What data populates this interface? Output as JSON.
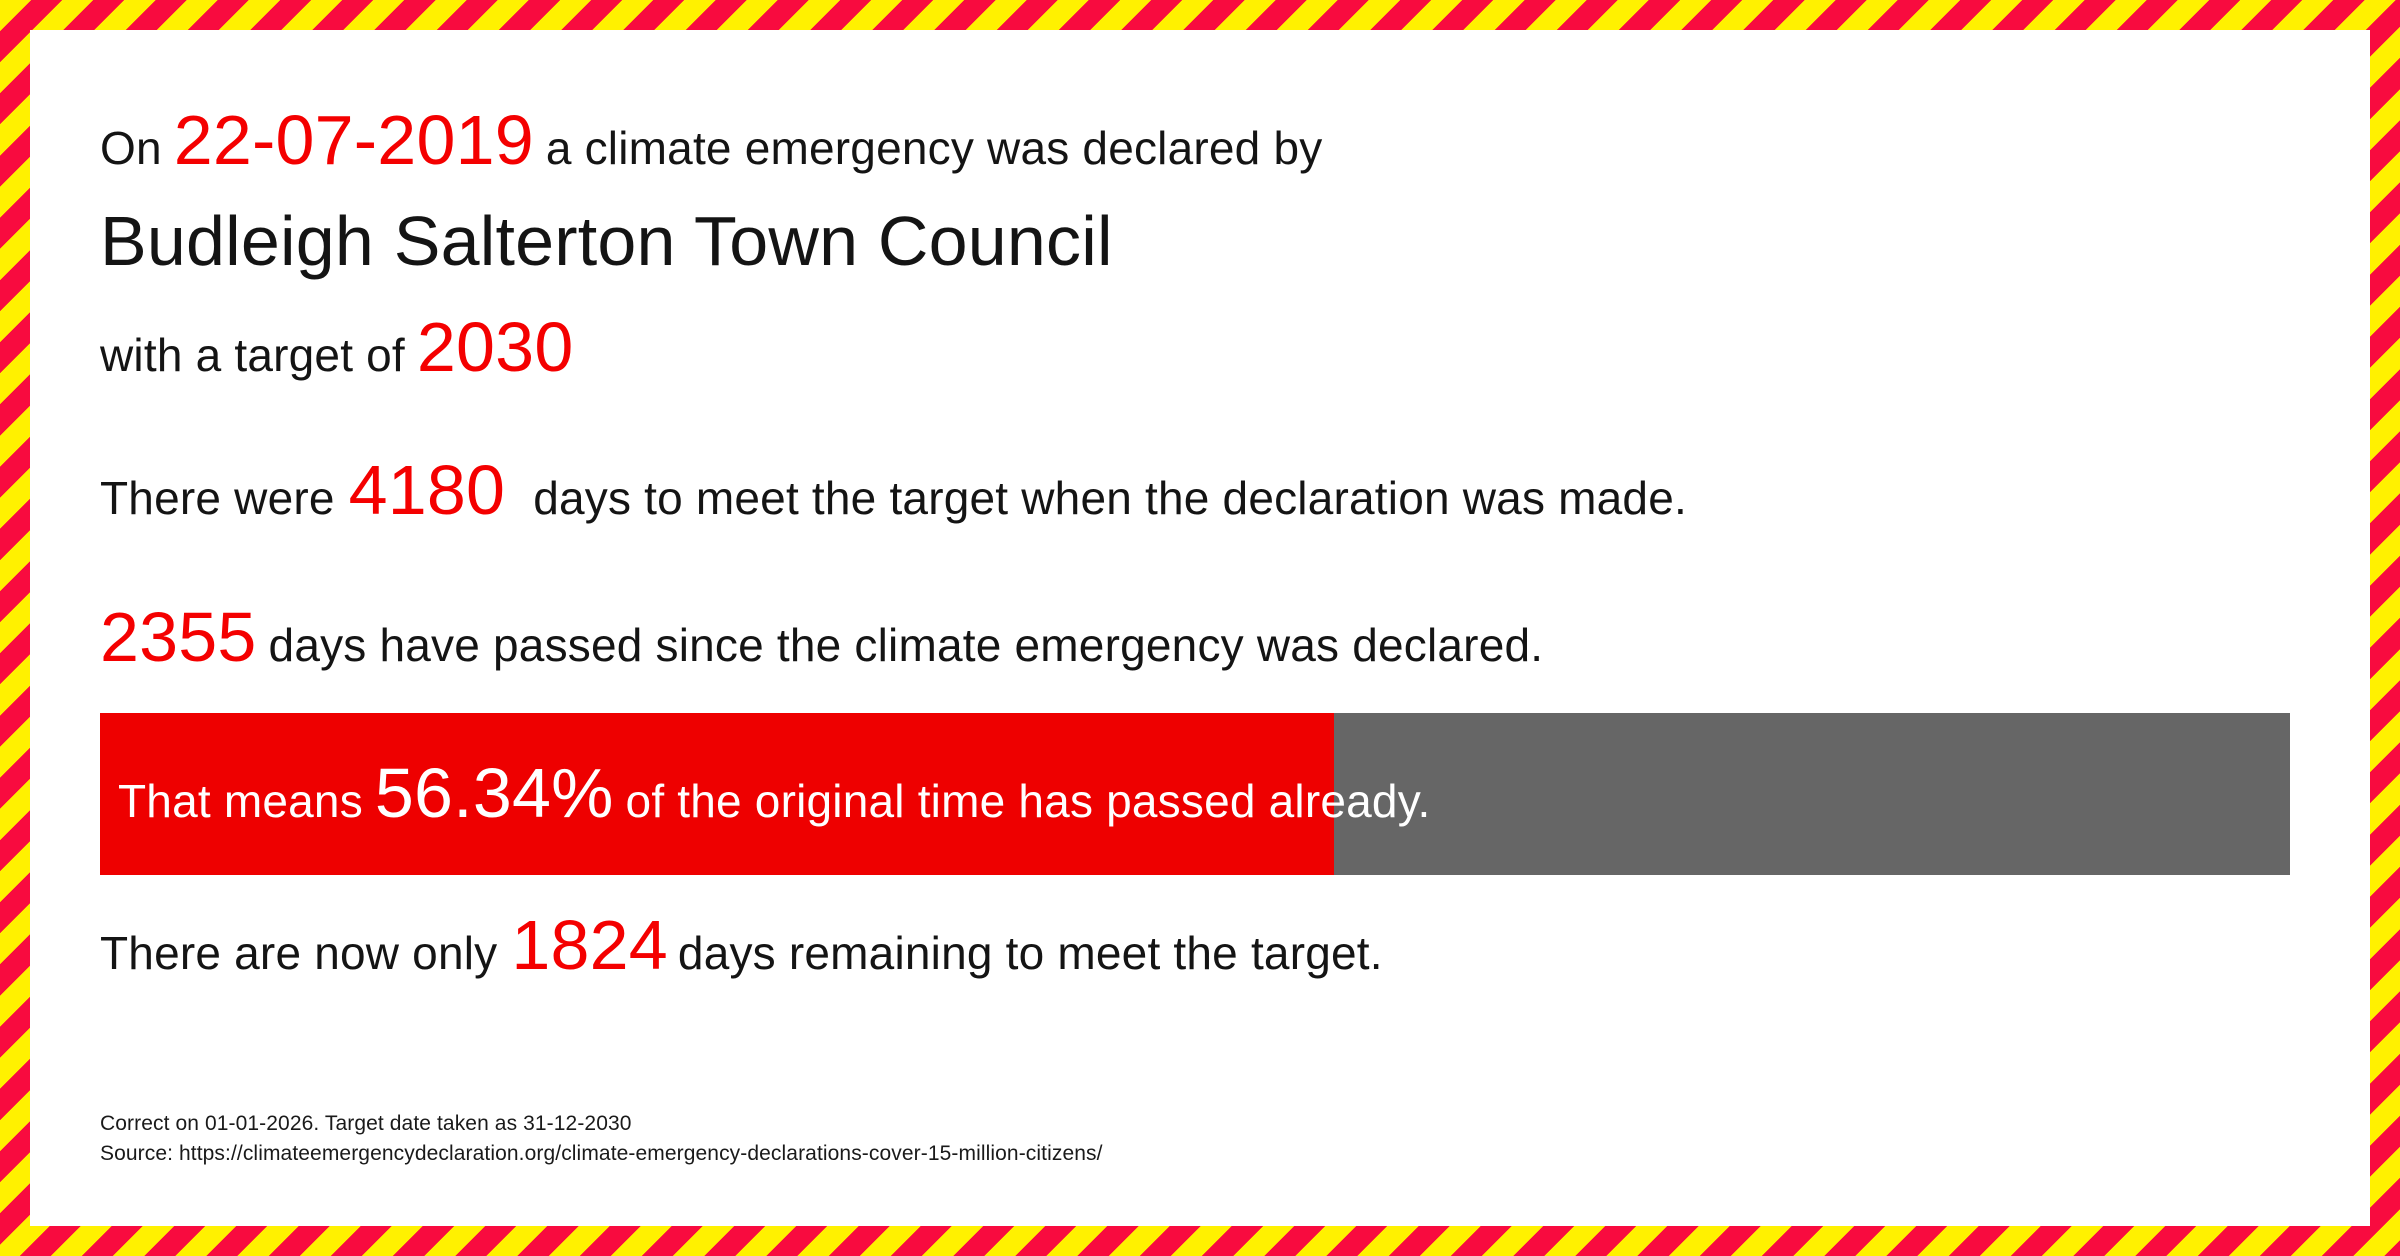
{
  "colors": {
    "stripe_yellow": "#fff100",
    "stripe_red": "#f80b3f",
    "accent_red": "#f40000",
    "bar_red": "#ee0000",
    "bar_gray": "#666666",
    "text_color": "#141414",
    "bar_text": "#ffffff",
    "footer_text": "#1a1a1a"
  },
  "declaration": {
    "prefix": "On",
    "date": "22-07-2019",
    "suffix": "a climate emergency was declared by",
    "council": "Budleigh Salterton Town Council",
    "target_prefix": "with a target of",
    "target_year": "2030"
  },
  "stats": {
    "original_days_prefix": "There were",
    "original_days": "4180",
    "original_days_suffix": "days to meet the target when the declaration was made.",
    "days_passed": "2355",
    "days_passed_suffix": "days have passed since the climate emergency was declared.",
    "remaining_prefix": "There are now only",
    "remaining_days": "1824",
    "remaining_suffix": "days remaining to meet the target."
  },
  "progress": {
    "percent": 56.34,
    "label_prefix": "That means",
    "label_percent": "56.34%",
    "label_suffix": "of the original time has passed already."
  },
  "footer": {
    "line1": "Correct on 01-01-2026. Target date taken as 31-12-2030",
    "line2": "Source: https://climateemergencydeclaration.org/climate-emergency-declarations-cover-15-million-citizens/"
  }
}
